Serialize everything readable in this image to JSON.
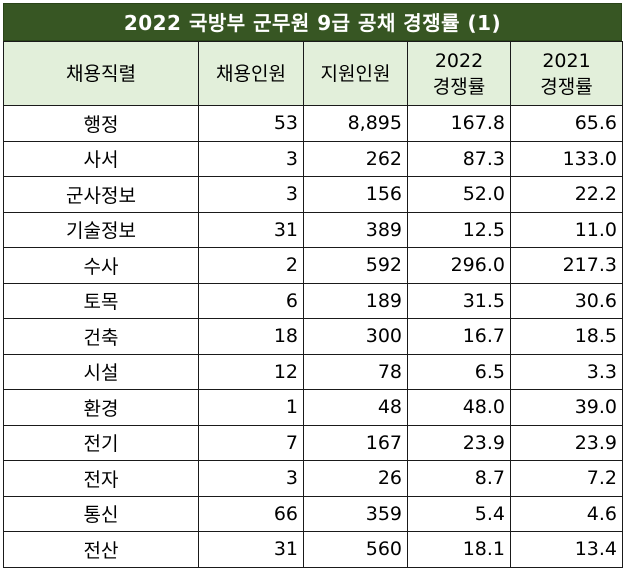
{
  "title": "2022 국방부 군무원 9급 공채  경쟁률 (1)",
  "colors": {
    "title_bg": "#375623",
    "header_bg": "#e2efda",
    "border": "#1a1a1a"
  },
  "headers": {
    "job": "채용직렬",
    "hires": "채용인원",
    "applicants": "지원인원",
    "ratio_2022_year": "2022",
    "ratio_2022_label": "경쟁률",
    "ratio_2021_year": "2021",
    "ratio_2021_label": "경쟁률"
  },
  "rows": [
    {
      "job": "행정",
      "hires": "53",
      "applicants": "8,895",
      "ratio_2022": "167.8",
      "ratio_2021": "65.6"
    },
    {
      "job": "사서",
      "hires": "3",
      "applicants": "262",
      "ratio_2022": "87.3",
      "ratio_2021": "133.0"
    },
    {
      "job": "군사정보",
      "hires": "3",
      "applicants": "156",
      "ratio_2022": "52.0",
      "ratio_2021": "22.2"
    },
    {
      "job": "기술정보",
      "hires": "31",
      "applicants": "389",
      "ratio_2022": "12.5",
      "ratio_2021": "11.0"
    },
    {
      "job": "수사",
      "hires": "2",
      "applicants": "592",
      "ratio_2022": "296.0",
      "ratio_2021": "217.3"
    },
    {
      "job": "토목",
      "hires": "6",
      "applicants": "189",
      "ratio_2022": "31.5",
      "ratio_2021": "30.6"
    },
    {
      "job": "건축",
      "hires": "18",
      "applicants": "300",
      "ratio_2022": "16.7",
      "ratio_2021": "18.5"
    },
    {
      "job": "시설",
      "hires": "12",
      "applicants": "78",
      "ratio_2022": "6.5",
      "ratio_2021": "3.3"
    },
    {
      "job": "환경",
      "hires": "1",
      "applicants": "48",
      "ratio_2022": "48.0",
      "ratio_2021": "39.0"
    },
    {
      "job": "전기",
      "hires": "7",
      "applicants": "167",
      "ratio_2022": "23.9",
      "ratio_2021": "23.9"
    },
    {
      "job": "전자",
      "hires": "3",
      "applicants": "26",
      "ratio_2022": "8.7",
      "ratio_2021": "7.2"
    },
    {
      "job": "통신",
      "hires": "66",
      "applicants": "359",
      "ratio_2022": "5.4",
      "ratio_2021": "4.6"
    },
    {
      "job": "전산",
      "hires": "31",
      "applicants": "560",
      "ratio_2022": "18.1",
      "ratio_2021": "13.4"
    }
  ]
}
